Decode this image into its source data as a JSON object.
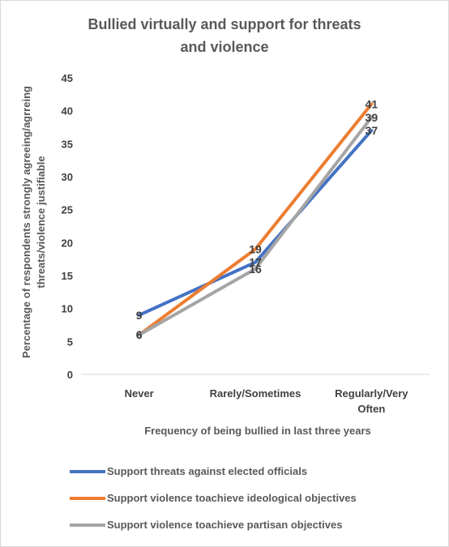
{
  "chart_data": {
    "type": "line",
    "title_line1": "Bullied virtually and support for threats",
    "title_line2": "and violence",
    "xlabel": "Frequency of  being bullied in last three years",
    "ylabel_line1": "Percentage of respondents strongly agreeing/agrreing",
    "ylabel_line2": "threats/violence justifiable",
    "categories": [
      {
        "line1": "Never",
        "line2": ""
      },
      {
        "line1": "Rarely/Sometimes",
        "line2": ""
      },
      {
        "line1": "Regularly/Very",
        "line2": "Often"
      }
    ],
    "ylim": [
      0,
      45
    ],
    "yticks": [
      "0",
      "5",
      "10",
      "15",
      "20",
      "25",
      "30",
      "35",
      "40",
      "45"
    ],
    "grid": false,
    "legend_position": "bottom",
    "series": [
      {
        "name": "Support threats against elected officials",
        "color": "#4472C4",
        "values": [
          9,
          17,
          37
        ]
      },
      {
        "name": "Support violence toachieve ideological objectives",
        "color": "#ED7D31",
        "values": [
          6,
          19,
          41
        ]
      },
      {
        "name": "Support violence toachieve partisan objectives",
        "color": "#A5A5A5",
        "values": [
          6,
          16,
          39
        ]
      }
    ]
  }
}
